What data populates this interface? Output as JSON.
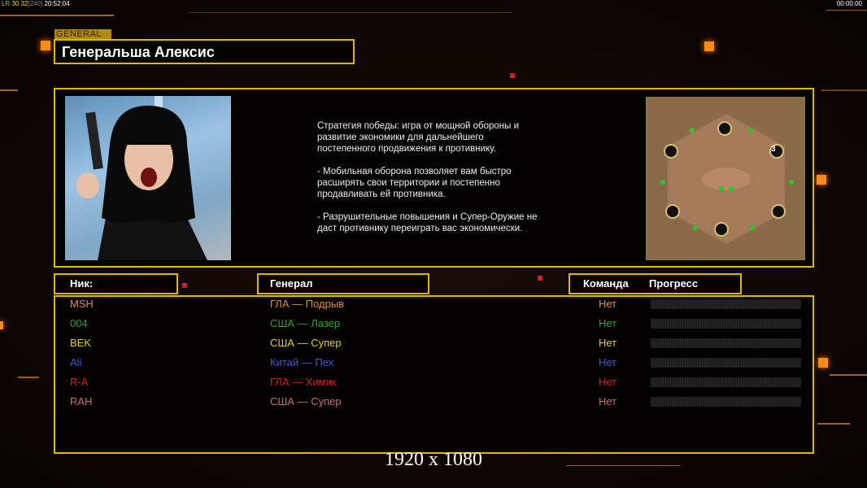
{
  "hud": {
    "fps_label": "LR",
    "fps_values": "30 32",
    "fps_cap": "[240]",
    "time": "20:52:04",
    "timer": "00:00:00"
  },
  "general": {
    "tag": "GENERAL",
    "name": "Генеральша Алексис",
    "description": "Стратегия победы: игра от мощной обороны и\n развитие экономики для дальнейшего\n постепенного продвижения к противнику.\n\n- Мобильная оборона позволяет вам быстро\n расширять свои территории и постепенно\n продавливать ей противника.\n\n- Разрушительные повышения и Супер-Оружие не\n даст противнику переиграть вас экономически."
  },
  "minimap": {
    "player_marker": "3"
  },
  "headers": {
    "nick": "Ник:",
    "general": "Генерал",
    "team": "Команда",
    "progress": "Прогресс"
  },
  "players": [
    {
      "nick": "MSH",
      "general": "ГЛА — Подрыв",
      "team": "Нет",
      "color": "#e0902a",
      "progress": 0
    },
    {
      "nick": "004",
      "general": "США — Лазер",
      "team": "Нет",
      "color": "#2aa62a",
      "progress": 0
    },
    {
      "nick": "BEK",
      "general": "США — Супер",
      "team": "Нет",
      "color": "#e0d020",
      "progress": 0
    },
    {
      "nick": "Ali",
      "general": "Китай — Пех",
      "team": "Нет",
      "color": "#3a5ae0",
      "progress": 0
    },
    {
      "nick": "R-A",
      "general": "ГЛА — Химик",
      "team": "Нет",
      "color": "#e01818",
      "progress": 0
    },
    {
      "nick": "RAH",
      "general": "США — Супер",
      "team": "Нет",
      "color": "#c87070",
      "progress": 0
    }
  ],
  "resolution": "1920 x 1080"
}
